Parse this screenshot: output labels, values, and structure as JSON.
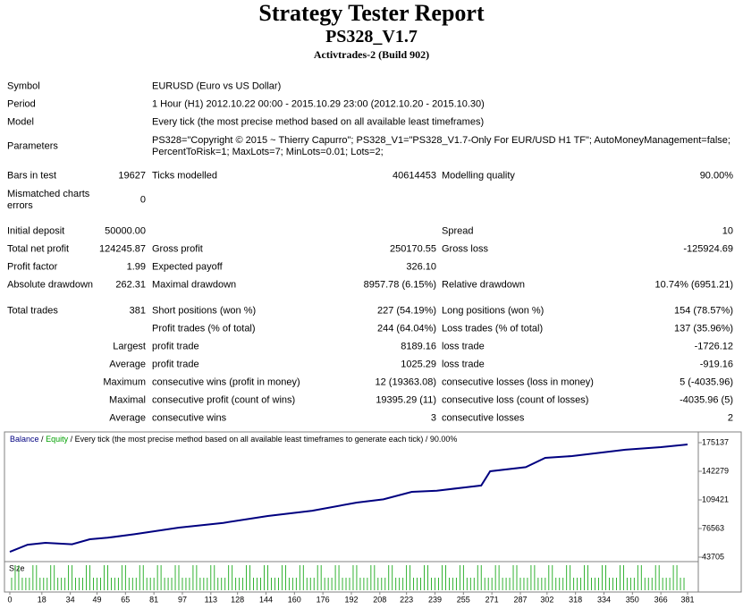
{
  "header": {
    "title": "Strategy Tester Report",
    "expert": "PS328_V1.7",
    "server": "Activtrades-2 (Build 902)"
  },
  "summary": {
    "rows": [
      {
        "label": "Symbol",
        "text": "EURUSD (Euro vs US Dollar)"
      },
      {
        "label": "Period",
        "text": "1 Hour (H1) 2012.10.22 00:00 - 2015.10.29 23:00 (2012.10.20 - 2015.10.30)"
      },
      {
        "label": "Model",
        "text": "Every tick (the most precise method based on all available least timeframes)"
      },
      {
        "label": "Parameters",
        "text": "PS328=\"Copyright © 2015 ~ Thierry Capurro\"; PS328_V1=\"PS328_V1.7-Only For EUR/USD H1 TF\"; AutoMoneyManagement=false; PercentToRisk=1; MaxLots=7; MinLots=0.01; Lots=2;"
      },
      {
        "label": "Bars in test",
        "value": "19627",
        "label2": "Ticks modelled",
        "value2": "40614453",
        "label3": "Modelling quality",
        "value3": "90.00%"
      },
      {
        "label": "Mismatched charts errors",
        "value": "0"
      },
      {
        "label": "Initial deposit",
        "value": "50000.00",
        "label3": "Spread",
        "value3": "10"
      },
      {
        "label": "Total net profit",
        "value": "124245.87",
        "label2": "Gross profit",
        "value2": "250170.55",
        "label3": "Gross loss",
        "value3": "-125924.69"
      },
      {
        "label": "Profit factor",
        "value": "1.99",
        "label2": "Expected payoff",
        "value2": "326.10"
      },
      {
        "label": "Absolute drawdown",
        "value": "262.31",
        "label2": "Maximal drawdown",
        "value2": "8957.78 (6.15%)",
        "label3": "Relative drawdown",
        "value3": "10.74% (6951.21)"
      },
      {
        "label": "Total trades",
        "value": "381",
        "label2": "Short positions (won %)",
        "value2": "227 (54.19%)",
        "label3": "Long positions (won %)",
        "value3": "154 (78.57%)"
      },
      {
        "label2": "Profit trades (% of total)",
        "value2": "244 (64.04%)",
        "label3": "Loss trades (% of total)",
        "value3": "137 (35.96%)"
      },
      {
        "heading": "Largest",
        "label2": "profit trade",
        "value2": "8189.16",
        "label3": "loss trade",
        "value3": "-1726.12"
      },
      {
        "heading": "Average",
        "label2": "profit trade",
        "value2": "1025.29",
        "label3": "loss trade",
        "value3": "-919.16"
      },
      {
        "heading": "Maximum",
        "label2": "consecutive wins (profit in money)",
        "value2": "12 (19363.08)",
        "label3": "consecutive losses (loss in money)",
        "value3": "5 (-4035.96)"
      },
      {
        "heading": "Maximal",
        "label2": "consecutive profit (count of wins)",
        "value2": "19395.29 (11)",
        "label3": "consecutive loss (count of losses)",
        "value3": "-4035.96 (5)"
      },
      {
        "heading": "Average",
        "label2": "consecutive wins",
        "value2": "3",
        "label3": "consecutive losses",
        "value3": "2"
      }
    ]
  },
  "chart": {
    "type": "line",
    "series_names": [
      "Balance",
      "Equity"
    ],
    "series_colors": [
      "#000080",
      "#00a000"
    ],
    "separator": "/",
    "caption": "Every tick (the most precise method based on all available least timeframes to generate each tick) / 90.00%",
    "size_label": "Size",
    "x": [
      0,
      10,
      20,
      35,
      45,
      55,
      70,
      95,
      120,
      145,
      170,
      195,
      210,
      226,
      240,
      256,
      265,
      270,
      290,
      301,
      316,
      346,
      366,
      381
    ],
    "values": [
      49800,
      58000,
      60100,
      58500,
      64200,
      66000,
      70000,
      77600,
      83000,
      90950,
      97000,
      106300,
      110000,
      118700,
      120000,
      123800,
      126000,
      142300,
      147000,
      157700,
      159700,
      167000,
      170000,
      173100
    ],
    "xlim": [
      0,
      381
    ],
    "xticks": [
      0,
      18,
      34,
      49,
      65,
      81,
      97,
      113,
      128,
      144,
      160,
      176,
      192,
      208,
      223,
      239,
      255,
      271,
      287,
      302,
      318,
      334,
      350,
      366,
      381
    ],
    "ylim": [
      40624,
      185407
    ],
    "yticks": [
      43705,
      76563,
      109421,
      142279,
      175137
    ]
  }
}
